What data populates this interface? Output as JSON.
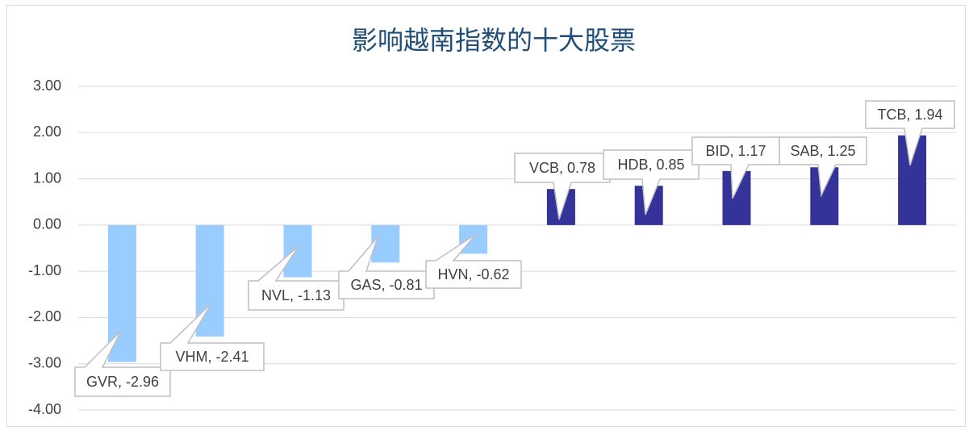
{
  "chart_data": {
    "type": "bar",
    "title": "影响越南指数的十大股票",
    "values": [
      -2.96,
      -2.41,
      -1.13,
      -0.81,
      -0.62,
      0.78,
      0.85,
      1.17,
      1.25,
      1.94
    ],
    "value_labels": [
      "GVR, -2.96",
      "VHM, -2.41",
      "NVL, -1.13",
      "GAS, -0.81",
      "HVN, -0.62",
      "VCB, 0.78",
      "HDB, 0.85",
      "BID, 1.17",
      "SAB, 1.25",
      "TCB, 1.94"
    ],
    "colors": [
      "#99ccff",
      "#99ccff",
      "#99ccff",
      "#99ccff",
      "#99ccff",
      "#333399",
      "#333399",
      "#333399",
      "#333399",
      "#333399"
    ],
    "ylim": [
      -4,
      3
    ],
    "yticks": [
      {
        "value": -4,
        "label": "-4.00"
      },
      {
        "value": -3,
        "label": "-3.00"
      },
      {
        "value": -2,
        "label": "-2.00"
      },
      {
        "value": -1,
        "label": "-1.00"
      },
      {
        "value": 0,
        "label": "0.00"
      },
      {
        "value": 1,
        "label": "1.00"
      },
      {
        "value": 2,
        "label": "2.00"
      },
      {
        "value": 3,
        "label": "3.00"
      }
    ],
    "grid": true
  }
}
